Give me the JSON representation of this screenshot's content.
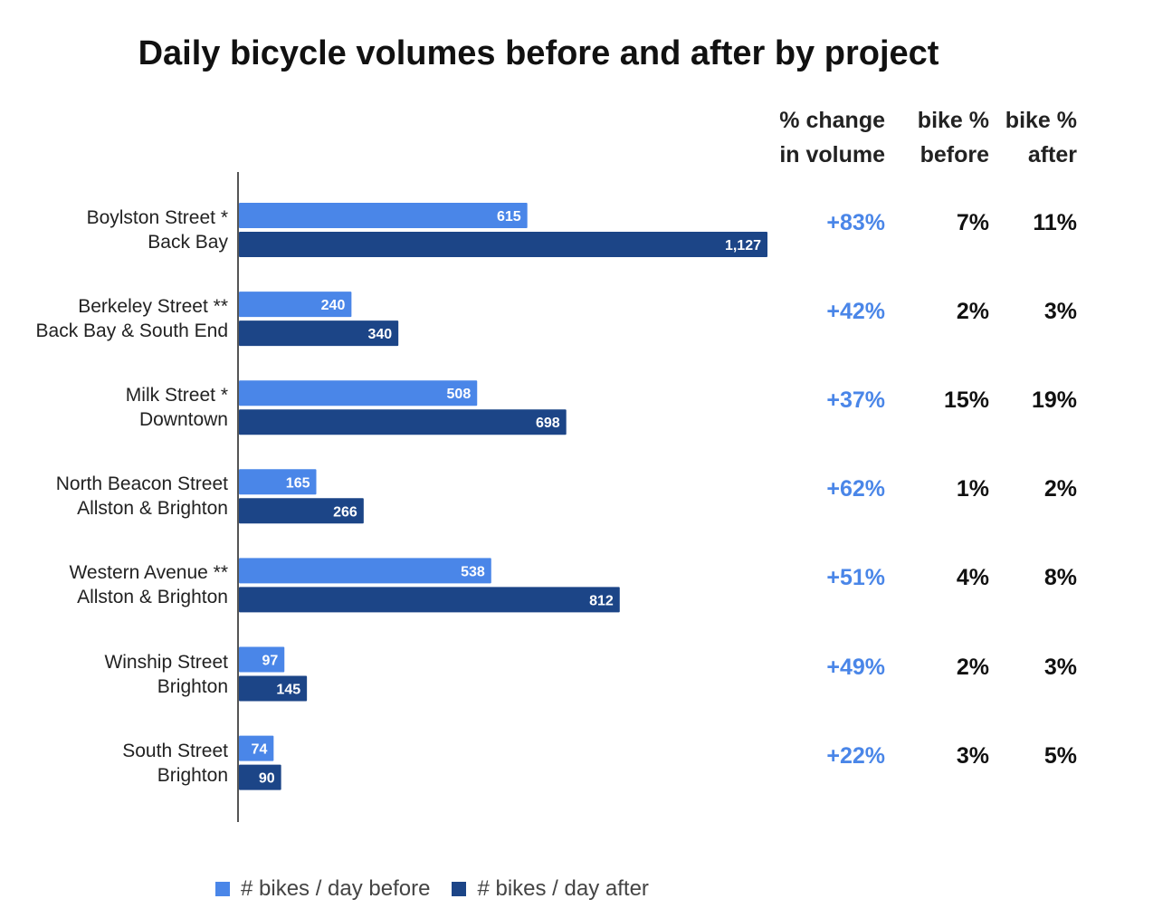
{
  "chart_data": {
    "type": "bar",
    "orientation": "horizontal",
    "title": "Daily bicycle volumes before and after by project",
    "categories": [
      [
        "Boylston Street *",
        "Back Bay"
      ],
      [
        "Berkeley Street **",
        "Back Bay & South End"
      ],
      [
        "Milk Street *",
        "Downtown"
      ],
      [
        "North Beacon Street",
        "Allston & Brighton"
      ],
      [
        "Western Avenue **",
        "Allston & Brighton"
      ],
      [
        "Winship Street",
        "Brighton"
      ],
      [
        "South Street",
        "Brighton"
      ]
    ],
    "series": [
      {
        "name": "# bikes / day before",
        "color": "#4a86e8",
        "values": [
          615,
          240,
          508,
          165,
          538,
          97,
          74
        ],
        "labels": [
          "615",
          "240",
          "508",
          "165",
          "538",
          "97",
          "74"
        ]
      },
      {
        "name": "# bikes / day after",
        "color": "#1c4587",
        "values": [
          1127,
          340,
          698,
          266,
          812,
          145,
          90
        ],
        "labels": [
          "1,127",
          "340",
          "698",
          "266",
          "812",
          "145",
          "90"
        ]
      }
    ],
    "xlim": [
      0,
      1127
    ],
    "grid": false,
    "legend": "bottom",
    "table": {
      "headers": [
        [
          "% change",
          "in volume"
        ],
        [
          "bike %",
          "before"
        ],
        [
          "bike %",
          "after"
        ]
      ],
      "pct_change": [
        "+83%",
        "+42%",
        "+37%",
        "+62%",
        "+51%",
        "+49%",
        "+22%"
      ],
      "bike_pct_before": [
        "7%",
        "2%",
        "15%",
        "1%",
        "4%",
        "2%",
        "3%"
      ],
      "bike_pct_after": [
        "11%",
        "3%",
        "19%",
        "2%",
        "8%",
        "3%",
        "5%"
      ],
      "change_color": "#4a86e8"
    }
  }
}
